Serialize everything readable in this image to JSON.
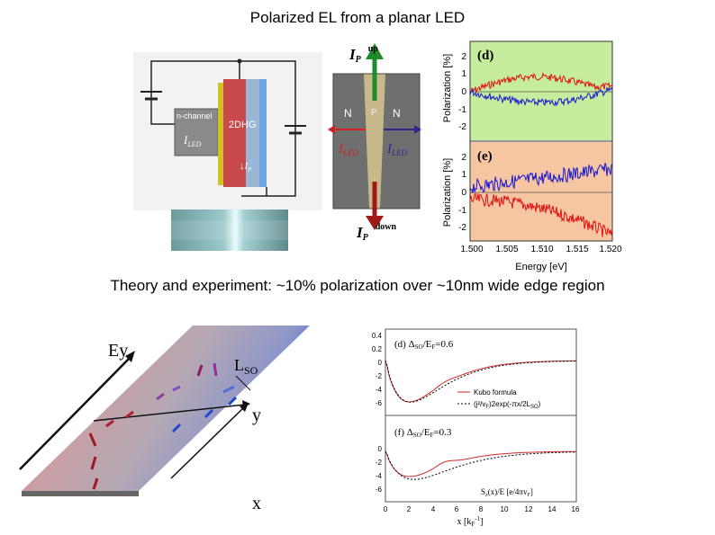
{
  "slide": {
    "title": "Polarized EL from a planar LED",
    "subtitle": "Theory and experiment: ~10% polarization over ~10nm wide edge region"
  },
  "circuit": {
    "n_channel_label": "n-channel",
    "dhg_label": "2DHG",
    "i_led_label": "I",
    "i_led_sub": "LED",
    "ip_label": "I",
    "ip_sub": "P"
  },
  "device": {
    "ip_up_label": "I",
    "ip_up_sub": "P",
    "up_label": "up",
    "ip_down_label": "I",
    "ip_down_sub": "P",
    "down_label": "down",
    "left_region": "N",
    "mid_region": "P",
    "right_region": "N",
    "left_led_label": "I",
    "left_led_sub": "LED",
    "right_led_label": "I",
    "right_led_sub": "LED",
    "colors": {
      "up_arrow": "#1e8c2a",
      "down_arrow": "#a01818",
      "left_arrow": "#d42020",
      "right_arrow": "#3a1f8c"
    }
  },
  "experiment_plot": {
    "panel_d": "(d)",
    "panel_e": "(e)",
    "ylabel": "Polarization [%]",
    "xlabel": "Energy [eV]",
    "xticks": [
      "1.500",
      "1.505",
      "1.510",
      "1.515",
      "1.520"
    ],
    "yticks_d": [
      "2",
      "1",
      "0",
      "-1",
      "-2"
    ],
    "yticks_e": [
      "2",
      "1",
      "0",
      "-1",
      "-2"
    ],
    "colors": {
      "panel_d_bg": "#c6ec9e",
      "panel_e_bg": "#f6c6a2",
      "red": "#e01010",
      "blue": "#1818d0"
    }
  },
  "schematic": {
    "ey_label": "Ey",
    "lso_label": "L",
    "lso_sub": "SO",
    "y_label": "y",
    "x_label": "x"
  },
  "theory_plot": {
    "panel_d_label": "(d) Δ",
    "panel_d_sub": "SO",
    "panel_d_rest": "/E",
    "panel_d_sub2": "F",
    "panel_d_value": "=0.6",
    "panel_f_label": "(f) Δ",
    "panel_f_sub": "SO",
    "panel_f_rest": "/E",
    "panel_f_sub2": "F",
    "panel_f_value": "=0.3",
    "legend_kubo": "Kubo formula",
    "legend_formula": "(j²/v",
    "legend_formula_sub": "F",
    "legend_formula_rest": ")2exp(-πx/2L",
    "legend_formula_sub2": "SO",
    "legend_formula_end": ")",
    "units_label": "S",
    "units_sub": "z",
    "units_rest": "(x)/E  [e/4πv",
    "units_sub2": "F",
    "units_end": "]",
    "xlabel": "x [k",
    "xlabel_sub": "F",
    "xlabel_sup": "-1",
    "xlabel_end": "]",
    "xticks": [
      "0",
      "2",
      "4",
      "6",
      "8",
      "10",
      "12",
      "14",
      "16"
    ],
    "yticks_top": [
      "0.4",
      "0.2",
      "0",
      "-2",
      "-4",
      "-6"
    ],
    "yticks_bottom": [
      "0",
      "-2",
      "-4",
      "-6"
    ],
    "colors": {
      "kubo": "#cc2a2a",
      "formula": "#000000"
    }
  }
}
